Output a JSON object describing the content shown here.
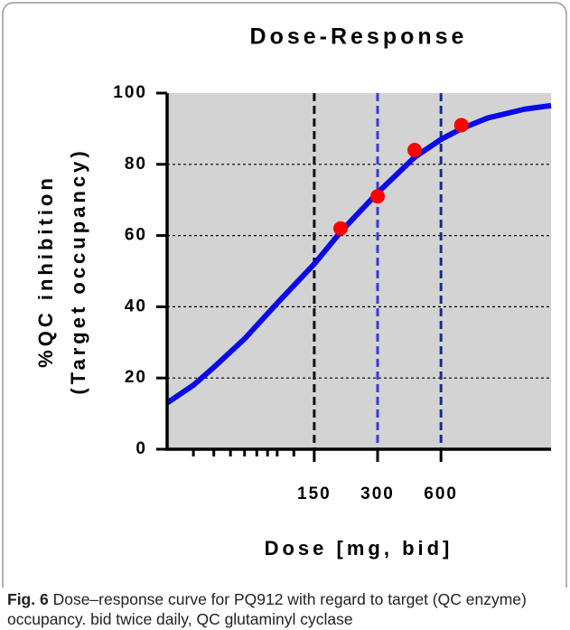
{
  "chart_data": {
    "type": "line",
    "title": "Dose-Response",
    "xlabel": "Dose [mg, bid]",
    "ylabel": [
      "%QC inhibition",
      "(Target occupancy)"
    ],
    "xscale": "log",
    "xlim": [
      30,
      2000
    ],
    "xticks": [
      150,
      300,
      600
    ],
    "xminor_ticks": [
      40,
      50,
      60,
      70,
      80,
      90,
      100,
      120
    ],
    "xtick_line_colors": [
      "#111111",
      "#3a3adf",
      "#1a2a8a"
    ],
    "ylim": [
      0,
      100
    ],
    "yticks": [
      0,
      20,
      40,
      60,
      80,
      100
    ],
    "grid": true,
    "background": "#d3d3d3",
    "series": [
      {
        "color": "#0a0ae6",
        "style": "line",
        "x": [
          30,
          40,
          50,
          70,
          100,
          150,
          200,
          300,
          450,
          600,
          750,
          1000,
          1500,
          2000
        ],
        "values": [
          13,
          18,
          23,
          31,
          41,
          52,
          61,
          72,
          82,
          87,
          90,
          93,
          95.5,
          96.5
        ]
      },
      {
        "color": "#ff0000",
        "style": "marker",
        "x": [
          200,
          300,
          450,
          750
        ],
        "values": [
          62,
          71,
          84,
          91
        ]
      }
    ]
  },
  "caption": {
    "label": "Fig. 6",
    "text": "Dose–response curve for PQ912 with regard to target (QC enzyme) occupancy. bid twice daily, QC glutaminyl cyclase"
  }
}
